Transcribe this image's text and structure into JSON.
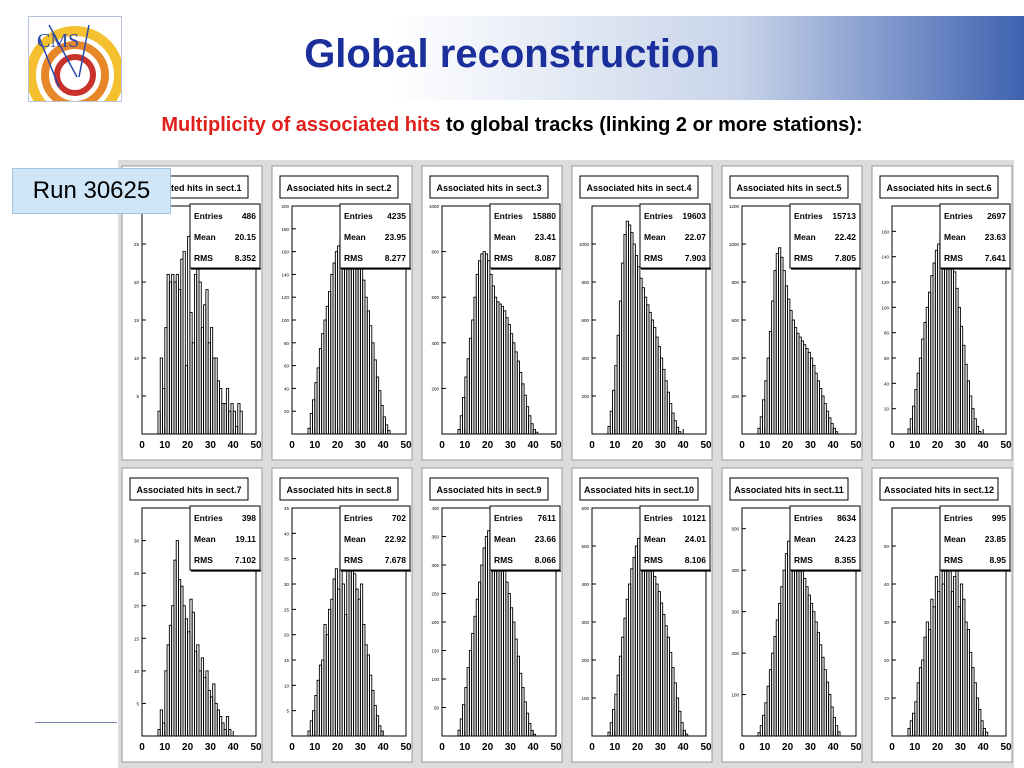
{
  "header": {
    "title": "Global reconstruction",
    "subtitle_red": "Multiplicity of associated hits",
    "subtitle_rest": " to global tracks (linking 2 or more stations):"
  },
  "logo": {
    "text": "CMS"
  },
  "run_label": "Run 30625",
  "stat_labels": {
    "entries": "Entries",
    "mean": "Mean",
    "rms": "RMS"
  },
  "colors": {
    "title": "#1a2e9c",
    "subtitle_highlight": "#e0201a",
    "badge": "#cfe6f8",
    "panel_bg": "#dcdcdc"
  },
  "chart_data": [
    {
      "type": "histogram",
      "title": "Associated hits in sect.1",
      "entries": "486",
      "mean": "20.15",
      "rms": "8.352",
      "xlim": [
        0,
        50
      ],
      "x_ticks": [
        "0",
        "10",
        "20",
        "30",
        "40",
        "50"
      ],
      "ylim": [
        0,
        30
      ],
      "y_ticks": [
        "5",
        "10",
        "15",
        "20",
        "25"
      ],
      "bin_width": 1,
      "values": [
        0,
        0,
        0,
        0,
        0,
        0,
        0,
        3,
        10,
        6,
        14,
        21,
        20,
        21,
        20,
        21,
        19,
        23,
        24,
        9,
        26,
        16,
        12,
        21,
        22,
        20,
        14,
        17,
        19,
        12,
        14,
        10,
        10,
        7,
        6,
        4,
        4,
        6,
        3,
        4,
        3,
        1,
        4,
        3,
        0,
        0,
        0,
        0,
        0,
        0
      ]
    },
    {
      "type": "histogram",
      "title": "Associated hits in sect.2",
      "entries": "4235",
      "mean": "23.95",
      "rms": "8.277",
      "xlim": [
        0,
        50
      ],
      "x_ticks": [
        "0",
        "10",
        "20",
        "30",
        "40",
        "50"
      ],
      "ylim": [
        0,
        200
      ],
      "y_ticks": [
        "20",
        "40",
        "60",
        "80",
        "100",
        "120",
        "140",
        "160",
        "180",
        "200"
      ],
      "bin_width": 1,
      "values": [
        0,
        0,
        0,
        0,
        0,
        0,
        0,
        5,
        18,
        30,
        45,
        58,
        75,
        88,
        100,
        112,
        125,
        140,
        150,
        160,
        165,
        172,
        180,
        185,
        188,
        190,
        182,
        175,
        168,
        158,
        148,
        135,
        120,
        108,
        95,
        80,
        65,
        50,
        38,
        25,
        15,
        8,
        3,
        0,
        0,
        0,
        0,
        0,
        0,
        0
      ]
    },
    {
      "type": "histogram",
      "title": "Associated hits in sect.3",
      "entries": "15880",
      "mean": "23.41",
      "rms": "8.087",
      "xlim": [
        0,
        50
      ],
      "x_ticks": [
        "0",
        "10",
        "20",
        "30",
        "40",
        "50"
      ],
      "ylim": [
        0,
        1000
      ],
      "y_ticks": [
        "200",
        "400",
        "600",
        "800",
        "1000"
      ],
      "bin_width": 1,
      "values": [
        0,
        0,
        0,
        0,
        0,
        0,
        0,
        20,
        80,
        160,
        250,
        330,
        420,
        500,
        600,
        700,
        760,
        790,
        800,
        790,
        760,
        700,
        650,
        600,
        580,
        570,
        560,
        540,
        510,
        480,
        440,
        400,
        360,
        320,
        270,
        220,
        170,
        120,
        80,
        45,
        20,
        8,
        0,
        0,
        0,
        0,
        0,
        0,
        0,
        0
      ]
    },
    {
      "type": "histogram",
      "title": "Associated hits in sect.4",
      "entries": "19603",
      "mean": "22.07",
      "rms": "7.903",
      "xlim": [
        0,
        50
      ],
      "x_ticks": [
        "0",
        "10",
        "20",
        "30",
        "40",
        "50"
      ],
      "ylim": [
        0,
        1200
      ],
      "y_ticks": [
        "200",
        "400",
        "600",
        "800",
        "1000"
      ],
      "bin_width": 1,
      "values": [
        0,
        0,
        0,
        0,
        0,
        0,
        0,
        40,
        120,
        230,
        360,
        520,
        700,
        900,
        1050,
        1120,
        1100,
        1060,
        1000,
        940,
        880,
        820,
        770,
        720,
        680,
        640,
        600,
        560,
        510,
        460,
        400,
        340,
        280,
        220,
        160,
        110,
        70,
        35,
        12,
        0,
        0,
        0,
        0,
        0,
        0,
        0,
        0,
        0,
        0,
        0
      ]
    },
    {
      "type": "histogram",
      "title": "Associated hits in sect.5",
      "entries": "15713",
      "mean": "22.42",
      "rms": "7.805",
      "xlim": [
        0,
        50
      ],
      "x_ticks": [
        "0",
        "10",
        "20",
        "30",
        "40",
        "50"
      ],
      "ylim": [
        0,
        1200
      ],
      "y_ticks": [
        "200",
        "400",
        "600",
        "800",
        "1000",
        "1200"
      ],
      "bin_width": 1,
      "values": [
        0,
        0,
        0,
        0,
        0,
        0,
        0,
        30,
        90,
        180,
        280,
        400,
        540,
        700,
        860,
        950,
        980,
        930,
        860,
        780,
        710,
        650,
        600,
        560,
        530,
        510,
        490,
        470,
        450,
        430,
        400,
        360,
        320,
        280,
        240,
        200,
        160,
        120,
        85,
        55,
        30,
        12,
        0,
        0,
        0,
        0,
        0,
        0,
        0,
        0
      ]
    },
    {
      "type": "histogram",
      "title": "Associated hits in sect.6",
      "entries": "2697",
      "mean": "23.63",
      "rms": "7.641",
      "xlim": [
        0,
        50
      ],
      "x_ticks": [
        "0",
        "10",
        "20",
        "30",
        "40",
        "50"
      ],
      "ylim": [
        0,
        180
      ],
      "y_ticks": [
        "20",
        "40",
        "60",
        "80",
        "100",
        "120",
        "140",
        "160"
      ],
      "bin_width": 1,
      "values": [
        0,
        0,
        0,
        0,
        0,
        0,
        0,
        4,
        12,
        22,
        35,
        48,
        60,
        75,
        88,
        100,
        112,
        125,
        135,
        145,
        150,
        158,
        162,
        165,
        160,
        150,
        140,
        128,
        115,
        100,
        85,
        70,
        55,
        42,
        30,
        20,
        12,
        6,
        2,
        0,
        0,
        0,
        0,
        0,
        0,
        0,
        0,
        0,
        0,
        0
      ]
    },
    {
      "type": "histogram",
      "title": "Associated hits in sect.7",
      "entries": "398",
      "mean": "19.11",
      "rms": "7.102",
      "xlim": [
        0,
        50
      ],
      "x_ticks": [
        "0",
        "10",
        "20",
        "30",
        "40",
        "50"
      ],
      "ylim": [
        0,
        35
      ],
      "y_ticks": [
        "5",
        "10",
        "15",
        "20",
        "25",
        "30"
      ],
      "bin_width": 1,
      "values": [
        0,
        0,
        0,
        0,
        0,
        0,
        0,
        1,
        4,
        2,
        10,
        14,
        17,
        20,
        27,
        30,
        24,
        23,
        20,
        18,
        16,
        21,
        19,
        13,
        14,
        10,
        12,
        9,
        10,
        7,
        6,
        8,
        5,
        4,
        3,
        2,
        1,
        3,
        1,
        0,
        0,
        0,
        0,
        0,
        0,
        0,
        0,
        0,
        0,
        0
      ]
    },
    {
      "type": "histogram",
      "title": "Associated hits in sect.8",
      "entries": "702",
      "mean": "22.92",
      "rms": "7.678",
      "xlim": [
        0,
        50
      ],
      "x_ticks": [
        "0",
        "10",
        "20",
        "30",
        "40",
        "50"
      ],
      "ylim": [
        0,
        45
      ],
      "y_ticks": [
        "5",
        "10",
        "15",
        "20",
        "25",
        "30",
        "35",
        "40",
        "45"
      ],
      "bin_width": 1,
      "values": [
        0,
        0,
        0,
        0,
        0,
        0,
        0,
        1,
        3,
        5,
        8,
        11,
        14,
        15,
        22,
        20,
        25,
        27,
        31,
        33,
        29,
        36,
        30,
        24,
        38,
        40,
        35,
        32,
        29,
        27,
        30,
        22,
        18,
        16,
        12,
        9,
        6,
        4,
        2,
        1,
        0,
        0,
        0,
        0,
        0,
        0,
        0,
        0,
        0,
        0
      ]
    },
    {
      "type": "histogram",
      "title": "Associated hits in sect.9",
      "entries": "7611",
      "mean": "23.66",
      "rms": "8.066",
      "xlim": [
        0,
        50
      ],
      "x_ticks": [
        "0",
        "10",
        "20",
        "30",
        "40",
        "50"
      ],
      "ylim": [
        0,
        400
      ],
      "y_ticks": [
        "50",
        "100",
        "150",
        "200",
        "250",
        "300",
        "350",
        "400"
      ],
      "bin_width": 1,
      "values": [
        0,
        0,
        0,
        0,
        0,
        0,
        0,
        10,
        30,
        55,
        85,
        120,
        150,
        180,
        210,
        240,
        270,
        300,
        330,
        350,
        360,
        370,
        365,
        355,
        345,
        330,
        310,
        290,
        270,
        250,
        225,
        200,
        170,
        140,
        110,
        85,
        60,
        40,
        22,
        10,
        3,
        0,
        0,
        0,
        0,
        0,
        0,
        0,
        0,
        0
      ]
    },
    {
      "type": "histogram",
      "title": "Associated hits in sect.10",
      "entries": "10121",
      "mean": "24.01",
      "rms": "8.106",
      "xlim": [
        0,
        50
      ],
      "x_ticks": [
        "0",
        "10",
        "20",
        "30",
        "40",
        "50"
      ],
      "ylim": [
        0,
        600
      ],
      "y_ticks": [
        "100",
        "200",
        "300",
        "400",
        "500",
        "600"
      ],
      "bin_width": 1,
      "values": [
        0,
        0,
        0,
        0,
        0,
        0,
        0,
        10,
        35,
        70,
        110,
        160,
        210,
        260,
        310,
        360,
        400,
        440,
        470,
        500,
        520,
        530,
        520,
        500,
        480,
        460,
        440,
        420,
        400,
        380,
        350,
        320,
        290,
        260,
        220,
        180,
        140,
        100,
        65,
        35,
        15,
        5,
        0,
        0,
        0,
        0,
        0,
        0,
        0,
        0
      ]
    },
    {
      "type": "histogram",
      "title": "Associated hits in sect.11",
      "entries": "8634",
      "mean": "24.23",
      "rms": "8.355",
      "xlim": [
        0,
        50
      ],
      "x_ticks": [
        "0",
        "10",
        "20",
        "30",
        "40",
        "50"
      ],
      "ylim": [
        0,
        550
      ],
      "y_ticks": [
        "100",
        "200",
        "300",
        "400",
        "500"
      ],
      "bin_width": 1,
      "values": [
        0,
        0,
        0,
        0,
        0,
        0,
        0,
        8,
        25,
        50,
        80,
        120,
        160,
        200,
        240,
        280,
        320,
        360,
        400,
        440,
        470,
        490,
        480,
        460,
        440,
        420,
        400,
        380,
        360,
        340,
        320,
        300,
        275,
        250,
        220,
        190,
        160,
        130,
        100,
        70,
        45,
        25,
        10,
        0,
        0,
        0,
        0,
        0,
        0,
        0
      ]
    },
    {
      "type": "histogram",
      "title": "Associated hits in sect.12",
      "entries": "995",
      "mean": "23.85",
      "rms": "8.95",
      "xlim": [
        0,
        50
      ],
      "x_ticks": [
        "0",
        "10",
        "20",
        "30",
        "40",
        "50"
      ],
      "ylim": [
        0,
        60
      ],
      "y_ticks": [
        "10",
        "20",
        "30",
        "40",
        "50"
      ],
      "bin_width": 1,
      "values": [
        0,
        0,
        0,
        0,
        0,
        0,
        0,
        2,
        4,
        6,
        9,
        14,
        18,
        20,
        26,
        30,
        28,
        36,
        34,
        42,
        38,
        46,
        40,
        50,
        44,
        48,
        38,
        42,
        46,
        34,
        40,
        36,
        30,
        28,
        22,
        18,
        14,
        10,
        7,
        4,
        2,
        1,
        0,
        0,
        0,
        0,
        0,
        0,
        0,
        0
      ]
    }
  ]
}
